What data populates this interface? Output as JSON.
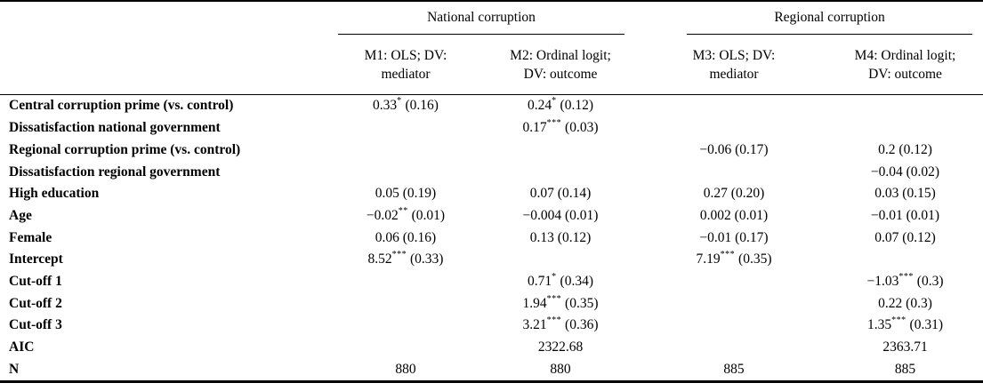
{
  "table": {
    "groups": [
      {
        "label": "National corruption"
      },
      {
        "label": "Regional corruption"
      }
    ],
    "model_headers": [
      {
        "line1": "M1: OLS; DV:",
        "line2": "mediator"
      },
      {
        "line1": "M2: Ordinal logit;",
        "line2": "DV: outcome"
      },
      {
        "line1": "M3: OLS; DV:",
        "line2": "mediator"
      },
      {
        "line1": "M4: Ordinal logit;",
        "line2": "DV: outcome"
      }
    ],
    "rows": [
      {
        "label": "Central corruption prime (vs. control)",
        "cells": [
          "0.33* (0.16)",
          "0.24* (0.12)",
          "",
          ""
        ]
      },
      {
        "label": "Dissatisfaction national government",
        "cells": [
          "",
          "0.17*** (0.03)",
          "",
          ""
        ]
      },
      {
        "label": "Regional corruption prime (vs. control)",
        "cells": [
          "",
          "",
          "−0.06 (0.17)",
          "0.2 (0.12)"
        ]
      },
      {
        "label": "Dissatisfaction regional government",
        "cells": [
          "",
          "",
          "",
          "−0.04 (0.02)"
        ]
      },
      {
        "label": "High education",
        "cells": [
          "0.05 (0.19)",
          "0.07 (0.14)",
          "0.27 (0.20)",
          "0.03 (0.15)"
        ]
      },
      {
        "label": "Age",
        "cells": [
          "−0.02** (0.01)",
          "−0.004 (0.01)",
          "0.002 (0.01)",
          "−0.01 (0.01)"
        ]
      },
      {
        "label": "Female",
        "cells": [
          "0.06 (0.16)",
          "0.13 (0.12)",
          "−0.01 (0.17)",
          "0.07 (0.12)"
        ]
      },
      {
        "label": "Intercept",
        "cells": [
          "8.52*** (0.33)",
          "",
          "7.19*** (0.35)",
          ""
        ]
      },
      {
        "label": "Cut-off 1",
        "cells": [
          "",
          "0.71* (0.34)",
          "",
          "−1.03*** (0.3)"
        ]
      },
      {
        "label": "Cut-off 2",
        "cells": [
          "",
          "1.94*** (0.35)",
          "",
          "0.22 (0.3)"
        ]
      },
      {
        "label": "Cut-off 3",
        "cells": [
          "",
          "3.21*** (0.36)",
          "",
          "1.35*** (0.31)"
        ]
      },
      {
        "label": "AIC",
        "cells": [
          "",
          "2322.68",
          "",
          "2363.71"
        ]
      },
      {
        "label": "N",
        "cells": [
          "880",
          "880",
          "885",
          "885"
        ]
      }
    ]
  }
}
